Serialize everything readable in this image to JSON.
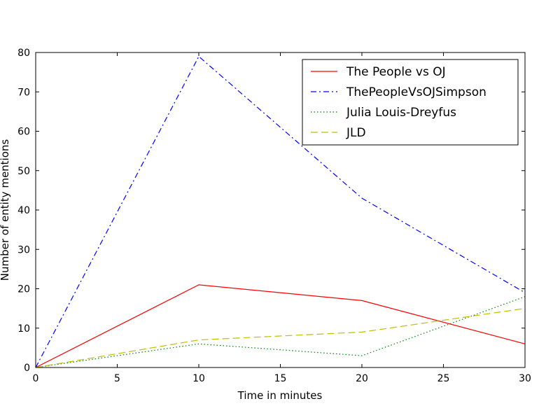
{
  "chart_data": {
    "type": "line",
    "xlabel": "Time in minutes",
    "ylabel": "Number of entity mentions",
    "xlim": [
      0,
      30
    ],
    "ylim": [
      0,
      80
    ],
    "x_ticks": [
      0,
      5,
      10,
      15,
      20,
      25,
      30
    ],
    "y_ticks": [
      0,
      10,
      20,
      30,
      40,
      50,
      60,
      70,
      80
    ],
    "grid": false,
    "legend_position": "top-right",
    "x": [
      0,
      10,
      20,
      30
    ],
    "series": [
      {
        "name": "The People vs OJ",
        "values": [
          0,
          21,
          17,
          6
        ],
        "color": "#ff0000",
        "dash": "solid"
      },
      {
        "name": "ThePeopleVsOJSimpson",
        "values": [
          0,
          79,
          43,
          19
        ],
        "color": "#0000ff",
        "dash": "dashdot"
      },
      {
        "name": "Julia Louis-Dreyfus",
        "values": [
          0,
          6,
          3,
          18
        ],
        "color": "#008000",
        "dash": "dotted"
      },
      {
        "name": "JLD",
        "values": [
          0,
          7,
          9,
          15
        ],
        "color": "#bfbf00",
        "dash": "dashed"
      }
    ]
  }
}
